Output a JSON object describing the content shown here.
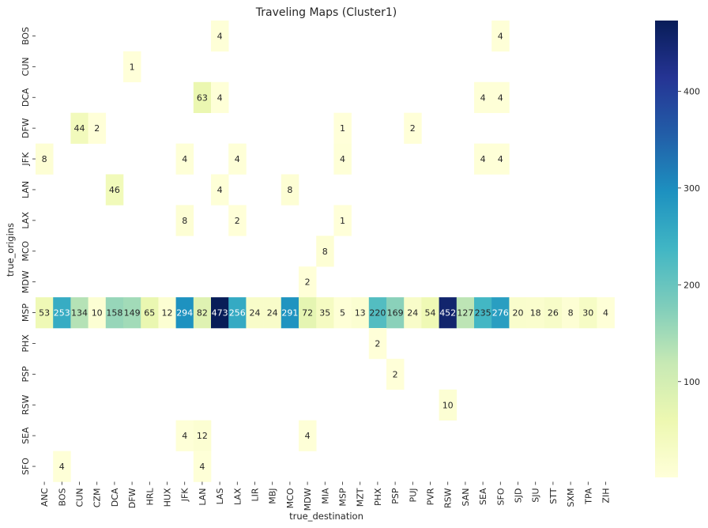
{
  "chart_data": {
    "type": "heatmap",
    "title": "Traveling Maps (Cluster1)",
    "xlabel": "true_destination",
    "ylabel": "true_origins",
    "x_categories": [
      "ANC",
      "BOS",
      "CUN",
      "CZM",
      "DCA",
      "DFW",
      "HRL",
      "HUX",
      "JFK",
      "LAN",
      "LAS",
      "LAX",
      "LIR",
      "MBJ",
      "MCO",
      "MDW",
      "MIA",
      "MSP",
      "MZT",
      "PHX",
      "PSP",
      "PUJ",
      "PVR",
      "RSW",
      "SAN",
      "SEA",
      "SFO",
      "SJD",
      "SJU",
      "STT",
      "SXM",
      "TPA",
      "ZIH"
    ],
    "y_categories": [
      "BOS",
      "CUN",
      "DCA",
      "DFW",
      "JFK",
      "LAN",
      "LAX",
      "MCO",
      "MDW",
      "MSP",
      "PHX",
      "PSP",
      "RSW",
      "SEA",
      "SFO"
    ],
    "cells": [
      {
        "y": "BOS",
        "x": "LAS",
        "value": 4
      },
      {
        "y": "BOS",
        "x": "SFO",
        "value": 4
      },
      {
        "y": "CUN",
        "x": "DFW",
        "value": 1
      },
      {
        "y": "DCA",
        "x": "LAN",
        "value": 63
      },
      {
        "y": "DCA",
        "x": "LAS",
        "value": 4
      },
      {
        "y": "DCA",
        "x": "SEA",
        "value": 4
      },
      {
        "y": "DCA",
        "x": "SFO",
        "value": 4
      },
      {
        "y": "DFW",
        "x": "CUN",
        "value": 44
      },
      {
        "y": "DFW",
        "x": "CZM",
        "value": 2
      },
      {
        "y": "DFW",
        "x": "MSP",
        "value": 1
      },
      {
        "y": "DFW",
        "x": "PUJ",
        "value": 2
      },
      {
        "y": "JFK",
        "x": "ANC",
        "value": 8
      },
      {
        "y": "JFK",
        "x": "JFK",
        "value": 4
      },
      {
        "y": "JFK",
        "x": "LAX",
        "value": 4
      },
      {
        "y": "JFK",
        "x": "MSP",
        "value": 4
      },
      {
        "y": "JFK",
        "x": "SEA",
        "value": 4
      },
      {
        "y": "JFK",
        "x": "SFO",
        "value": 4
      },
      {
        "y": "LAN",
        "x": "DCA",
        "value": 46
      },
      {
        "y": "LAN",
        "x": "LAS",
        "value": 4
      },
      {
        "y": "LAN",
        "x": "MCO",
        "value": 8
      },
      {
        "y": "LAX",
        "x": "JFK",
        "value": 8
      },
      {
        "y": "LAX",
        "x": "LAX",
        "value": 2
      },
      {
        "y": "LAX",
        "x": "MSP",
        "value": 1
      },
      {
        "y": "MCO",
        "x": "MIA",
        "value": 8
      },
      {
        "y": "MDW",
        "x": "MDW",
        "value": 2
      },
      {
        "y": "MSP",
        "x": "ANC",
        "value": 53
      },
      {
        "y": "MSP",
        "x": "BOS",
        "value": 253
      },
      {
        "y": "MSP",
        "x": "CUN",
        "value": 134
      },
      {
        "y": "MSP",
        "x": "CZM",
        "value": 10
      },
      {
        "y": "MSP",
        "x": "DCA",
        "value": 158
      },
      {
        "y": "MSP",
        "x": "DFW",
        "value": 149
      },
      {
        "y": "MSP",
        "x": "HRL",
        "value": 65
      },
      {
        "y": "MSP",
        "x": "HUX",
        "value": 12
      },
      {
        "y": "MSP",
        "x": "JFK",
        "value": 294
      },
      {
        "y": "MSP",
        "x": "LAN",
        "value": 82
      },
      {
        "y": "MSP",
        "x": "LAS",
        "value": 473
      },
      {
        "y": "MSP",
        "x": "LAX",
        "value": 256
      },
      {
        "y": "MSP",
        "x": "LIR",
        "value": 24
      },
      {
        "y": "MSP",
        "x": "MBJ",
        "value": 24
      },
      {
        "y": "MSP",
        "x": "MCO",
        "value": 291
      },
      {
        "y": "MSP",
        "x": "MDW",
        "value": 72
      },
      {
        "y": "MSP",
        "x": "MIA",
        "value": 35
      },
      {
        "y": "MSP",
        "x": "MSP",
        "value": 5
      },
      {
        "y": "MSP",
        "x": "MZT",
        "value": 13
      },
      {
        "y": "MSP",
        "x": "PHX",
        "value": 220
      },
      {
        "y": "MSP",
        "x": "PSP",
        "value": 169
      },
      {
        "y": "MSP",
        "x": "PUJ",
        "value": 24
      },
      {
        "y": "MSP",
        "x": "PVR",
        "value": 54
      },
      {
        "y": "MSP",
        "x": "RSW",
        "value": 452
      },
      {
        "y": "MSP",
        "x": "SAN",
        "value": 127
      },
      {
        "y": "MSP",
        "x": "SEA",
        "value": 235
      },
      {
        "y": "MSP",
        "x": "SFO",
        "value": 276
      },
      {
        "y": "MSP",
        "x": "SJD",
        "value": 20
      },
      {
        "y": "MSP",
        "x": "SJU",
        "value": 18
      },
      {
        "y": "MSP",
        "x": "STT",
        "value": 26
      },
      {
        "y": "MSP",
        "x": "SXM",
        "value": 8
      },
      {
        "y": "MSP",
        "x": "TPA",
        "value": 30
      },
      {
        "y": "MSP",
        "x": "ZIH",
        "value": 4
      },
      {
        "y": "PHX",
        "x": "PHX",
        "value": 2
      },
      {
        "y": "PSP",
        "x": "PSP",
        "value": 2
      },
      {
        "y": "RSW",
        "x": "RSW",
        "value": 10
      },
      {
        "y": "SEA",
        "x": "JFK",
        "value": 4
      },
      {
        "y": "SEA",
        "x": "LAN",
        "value": 12
      },
      {
        "y": "SEA",
        "x": "MDW",
        "value": 4
      },
      {
        "y": "SFO",
        "x": "BOS",
        "value": 4
      },
      {
        "y": "SFO",
        "x": "LAN",
        "value": 4
      }
    ],
    "colormap": "YlGnBu",
    "colorbar_range": [
      1,
      473
    ],
    "colorbar_ticks": [
      100,
      200,
      300,
      400
    ]
  }
}
